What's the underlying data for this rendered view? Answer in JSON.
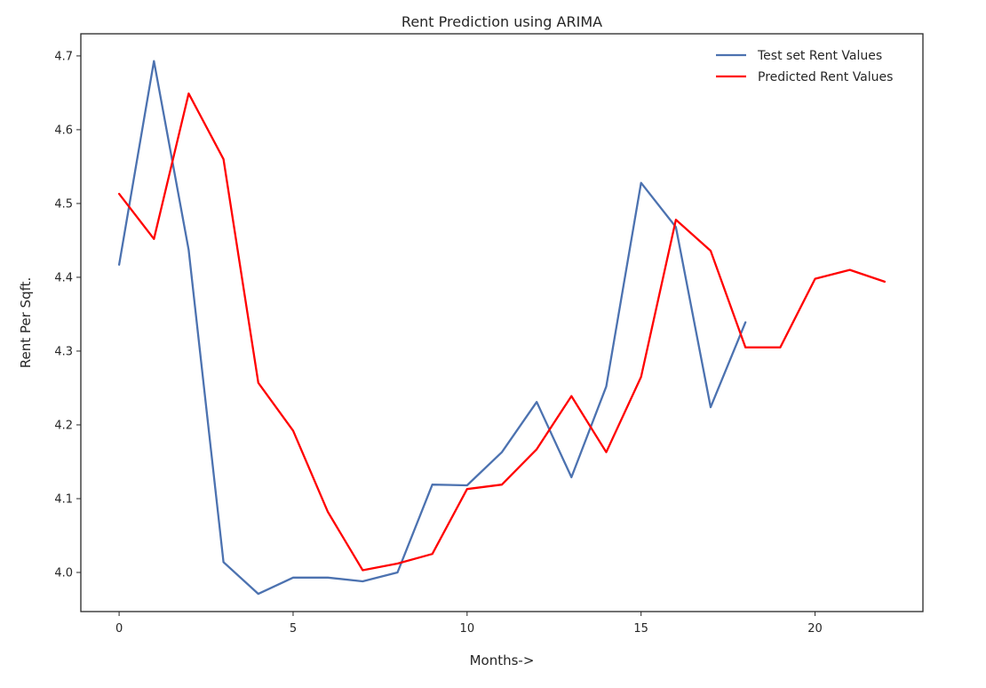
{
  "chart_data": {
    "type": "line",
    "title": "Rent Prediction using ARIMA",
    "xlabel": "Months->",
    "ylabel": "Rent Per Sqft.",
    "xlim": [
      -1.1,
      23.1
    ],
    "ylim": [
      3.947,
      4.73
    ],
    "xticks": [
      0,
      5,
      10,
      15,
      20
    ],
    "xtick_labels": [
      "0",
      "5",
      "10",
      "15",
      "20"
    ],
    "yticks": [
      4.0,
      4.1,
      4.2,
      4.3,
      4.4,
      4.5,
      4.6,
      4.7
    ],
    "ytick_labels": [
      "4.0",
      "4.1",
      "4.2",
      "4.3",
      "4.4",
      "4.5",
      "4.6",
      "4.7"
    ],
    "grid": false,
    "legend_position": "upper right",
    "series": [
      {
        "name": "Test set Rent Values",
        "color": "#4c72b0",
        "x": [
          0,
          1,
          2,
          3,
          4,
          5,
          6,
          7,
          8,
          9,
          10,
          11,
          12,
          13,
          14,
          15,
          16,
          17,
          18
        ],
        "values": [
          4.417,
          4.693,
          4.437,
          4.014,
          3.971,
          3.993,
          3.993,
          3.988,
          4.0,
          4.119,
          4.118,
          4.163,
          4.231,
          4.129,
          4.252,
          4.528,
          4.468,
          4.224,
          4.339
        ]
      },
      {
        "name": "Predicted Rent Values",
        "color": "#ff0000",
        "x": [
          0,
          1,
          2,
          3,
          4,
          5,
          6,
          7,
          8,
          9,
          10,
          11,
          12,
          13,
          14,
          15,
          16,
          17,
          18,
          19,
          20,
          21,
          22
        ],
        "values": [
          4.513,
          4.452,
          4.649,
          4.56,
          4.257,
          4.192,
          4.082,
          4.003,
          4.012,
          4.025,
          4.113,
          4.119,
          4.167,
          4.239,
          4.163,
          4.265,
          4.478,
          4.436,
          4.305,
          4.305,
          4.398,
          4.41,
          4.394
        ]
      }
    ]
  }
}
